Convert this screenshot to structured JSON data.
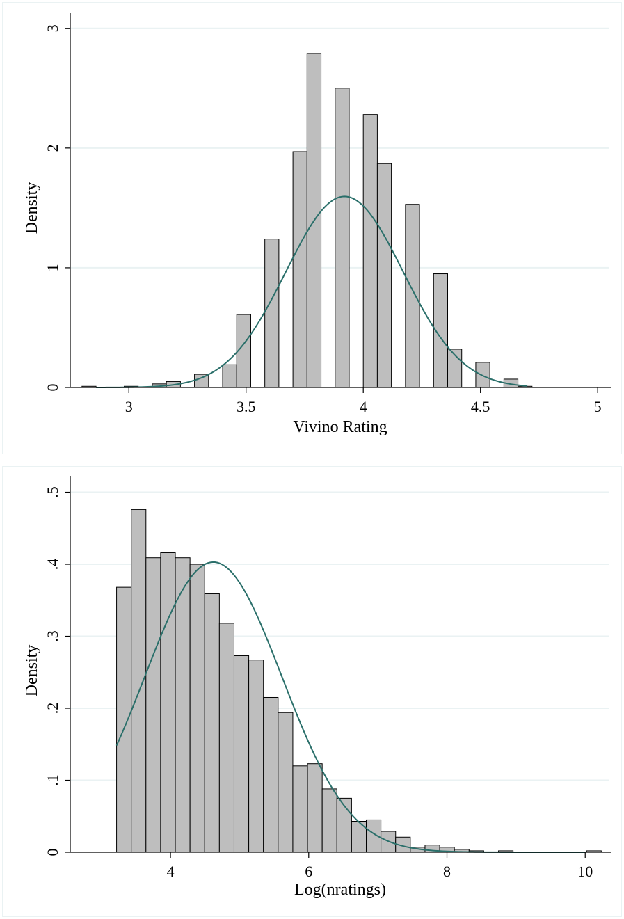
{
  "colors": {
    "bar_fill": "#bebebe",
    "bar_stroke": "#000000",
    "curve": "#2a6f6a",
    "grid": "#eaf2f3",
    "background": "#ffffff"
  },
  "chart_data": [
    {
      "type": "bar",
      "subtype": "histogram_with_normal_density",
      "xlabel": "Vivino Rating",
      "ylabel": "Density",
      "xlim": [
        2.75,
        5.05
      ],
      "ylim": [
        0,
        3.08
      ],
      "x_ticks": [
        3,
        3.5,
        4,
        4.5,
        5
      ],
      "x_tick_labels": [
        "3",
        "3.5",
        "4",
        "4.5",
        "5"
      ],
      "y_ticks": [
        0,
        1,
        2,
        3
      ],
      "y_tick_labels": [
        "0",
        "1",
        "2",
        "3"
      ],
      "grid": true,
      "bin_width": 0.06,
      "bins": [
        {
          "x0": 2.8,
          "x1": 2.86,
          "density": 0.01
        },
        {
          "x0": 2.98,
          "x1": 3.04,
          "density": 0.01
        },
        {
          "x0": 3.1,
          "x1": 3.16,
          "density": 0.03
        },
        {
          "x0": 3.16,
          "x1": 3.22,
          "density": 0.05
        },
        {
          "x0": 3.28,
          "x1": 3.34,
          "density": 0.11
        },
        {
          "x0": 3.4,
          "x1": 3.46,
          "density": 0.19
        },
        {
          "x0": 3.46,
          "x1": 3.52,
          "density": 0.61
        },
        {
          "x0": 3.58,
          "x1": 3.64,
          "density": 1.24
        },
        {
          "x0": 3.7,
          "x1": 3.76,
          "density": 1.97
        },
        {
          "x0": 3.76,
          "x1": 3.82,
          "density": 2.79
        },
        {
          "x0": 3.88,
          "x1": 3.94,
          "density": 2.5
        },
        {
          "x0": 4.0,
          "x1": 4.06,
          "density": 2.28
        },
        {
          "x0": 4.06,
          "x1": 4.12,
          "density": 1.87
        },
        {
          "x0": 4.18,
          "x1": 4.24,
          "density": 1.53
        },
        {
          "x0": 4.3,
          "x1": 4.36,
          "density": 0.95
        },
        {
          "x0": 4.36,
          "x1": 4.42,
          "density": 0.32
        },
        {
          "x0": 4.48,
          "x1": 4.54,
          "density": 0.21
        },
        {
          "x0": 4.6,
          "x1": 4.66,
          "density": 0.07
        },
        {
          "x0": 4.66,
          "x1": 4.72,
          "density": 0.01
        }
      ],
      "normal_curve": {
        "mean": 3.92,
        "sd": 0.25,
        "x_range": [
          2.86,
          4.7
        ]
      }
    },
    {
      "type": "bar",
      "subtype": "histogram_with_normal_density",
      "xlabel": "Log(nratings)",
      "ylabel": "Density",
      "xlim": [
        2.55,
        10.35
      ],
      "ylim": [
        0,
        0.515
      ],
      "x_ticks": [
        4,
        6,
        8,
        10
      ],
      "x_tick_labels": [
        "4",
        "6",
        "8",
        "10"
      ],
      "y_ticks": [
        0,
        0.1,
        0.2,
        0.3,
        0.4,
        0.5
      ],
      "y_tick_labels": [
        "0",
        ".1",
        ".2",
        ".3",
        ".4",
        ".5"
      ],
      "grid": true,
      "bin_start": 3.22,
      "bin_width": 0.2125,
      "densities": [
        0.368,
        0.476,
        0.409,
        0.416,
        0.409,
        0.4,
        0.359,
        0.318,
        0.273,
        0.267,
        0.215,
        0.194,
        0.12,
        0.123,
        0.088,
        0.075,
        0.043,
        0.045,
        0.029,
        0.021,
        0.007,
        0.01,
        0.007,
        0.004,
        0.002,
        0,
        0.002,
        0,
        0,
        0,
        0,
        0,
        0.002
      ],
      "normal_curve": {
        "mean": 4.62,
        "sd": 0.99,
        "x_range": [
          3.22,
          10.0
        ]
      }
    }
  ]
}
